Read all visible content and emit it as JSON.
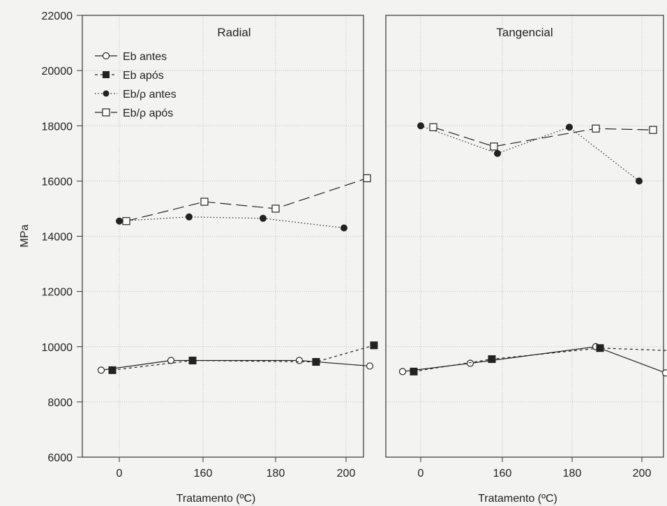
{
  "chart_data": {
    "type": "line",
    "ylabel": "MPa",
    "xlabel": "Tratamento (ºC)",
    "ylim": [
      6000,
      22000
    ],
    "yticks": [
      "6000",
      "8000",
      "10000",
      "12000",
      "14000",
      "16000",
      "18000",
      "20000",
      "22000"
    ],
    "categories": [
      "0",
      "160",
      "180",
      "200"
    ],
    "grid": true,
    "legend_position": "top-left",
    "legend": [
      {
        "label": "Eb antes",
        "marker": "open-circle",
        "dash": "solid"
      },
      {
        "label": "Eb após",
        "marker": "filled-square",
        "dash": "short-dash"
      },
      {
        "label": "Eb/ρ antes",
        "marker": "filled-circle",
        "dash": "dotted"
      },
      {
        "label": "Eb/ρ após",
        "marker": "open-square",
        "dash": "long-dash"
      }
    ],
    "panels": [
      {
        "title": "Radial",
        "series": [
          {
            "name": "Eb antes",
            "values": [
              9150,
              9500,
              9500,
              9300
            ]
          },
          {
            "name": "Eb após",
            "values": [
              9150,
              9500,
              9450,
              10050
            ]
          },
          {
            "name": "Eb/ρ antes",
            "values": [
              14550,
              14700,
              14650,
              14300
            ]
          },
          {
            "name": "Eb/ρ após",
            "values": [
              14550,
              15250,
              15000,
              16100
            ]
          }
        ]
      },
      {
        "title": "Tangencial",
        "series": [
          {
            "name": "Eb antes",
            "values": [
              9100,
              9400,
              10000,
              9050
            ]
          },
          {
            "name": "Eb após",
            "values": [
              9100,
              9550,
              9950,
              9850
            ]
          },
          {
            "name": "Eb/ρ antes",
            "values": [
              18000,
              17000,
              17950,
              16000
            ]
          },
          {
            "name": "Eb/ρ após",
            "values": [
              17950,
              17250,
              17900,
              17850
            ]
          }
        ]
      }
    ]
  }
}
